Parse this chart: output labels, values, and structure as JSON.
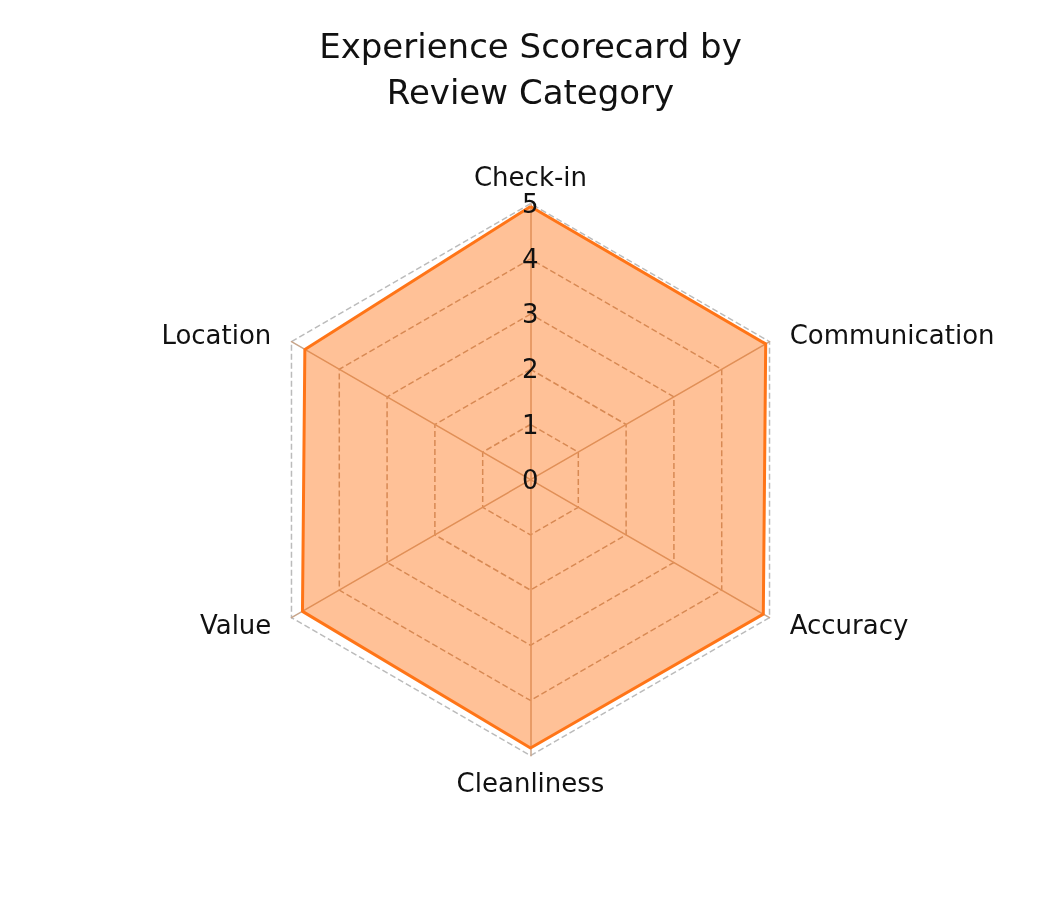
{
  "chart_data": {
    "type": "radar",
    "title": "Experience Scorecard by\nReview Category",
    "categories": [
      "Check-in",
      "Communication",
      "Accuracy",
      "Cleanliness",
      "Value",
      "Location"
    ],
    "series": [
      {
        "color": "#ff7518",
        "values": [
          4.95,
          4.92,
          4.87,
          4.86,
          4.77,
          4.72
        ]
      }
    ],
    "ylim": [
      0,
      5
    ],
    "yticks": [
      0,
      1,
      2,
      3,
      4,
      5
    ],
    "grid": true
  }
}
